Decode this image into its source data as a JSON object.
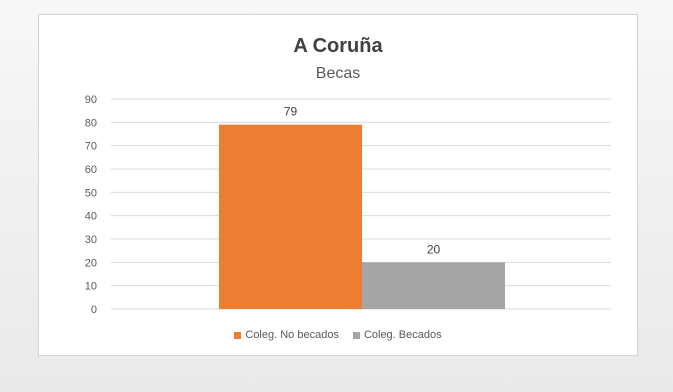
{
  "chart_data": {
    "type": "bar",
    "title": "A Coruña",
    "subtitle": "Becas",
    "categories": [
      ""
    ],
    "series": [
      {
        "name": "Coleg. No becados",
        "values": [
          79
        ],
        "color": "#ed7d31"
      },
      {
        "name": "Coleg. Becados",
        "values": [
          20
        ],
        "color": "#a5a5a5"
      }
    ],
    "ylim": [
      0,
      90
    ],
    "yticks": [
      "0",
      "10",
      "20",
      "30",
      "40",
      "50",
      "60",
      "70",
      "80",
      "90"
    ],
    "grid": true,
    "data_labels": true,
    "legend_position": "bottom"
  }
}
